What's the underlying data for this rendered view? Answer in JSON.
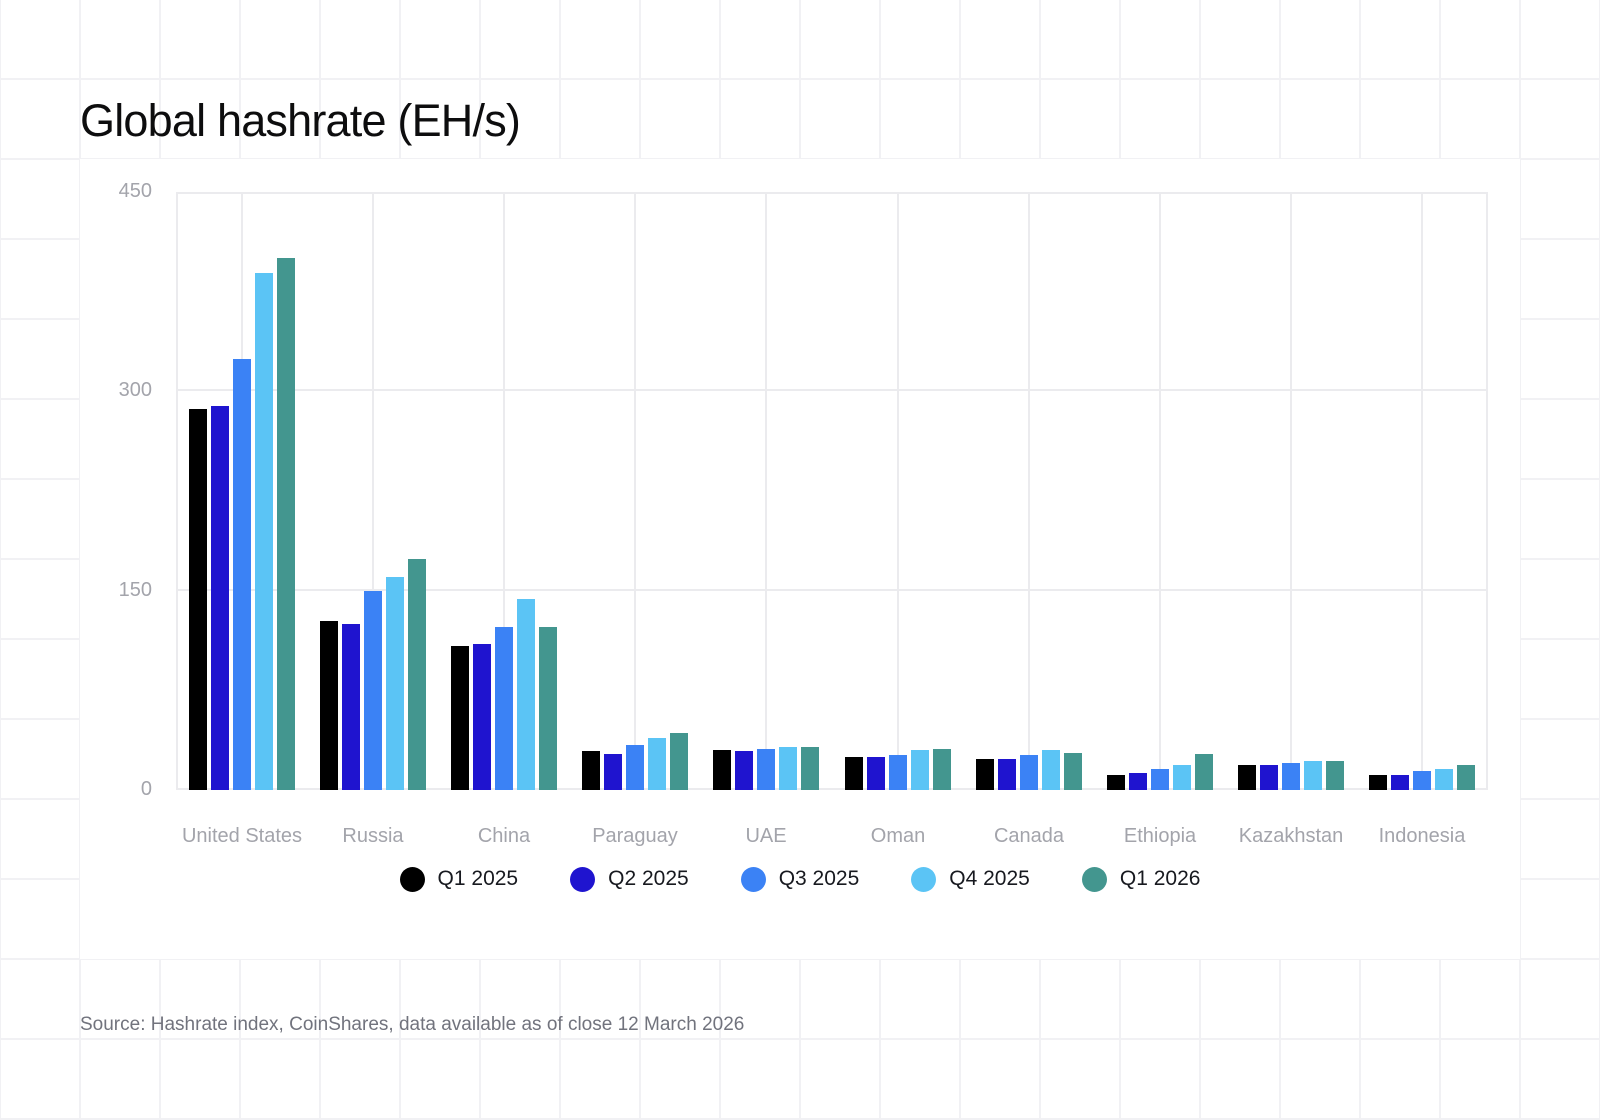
{
  "title": "Global hashrate (EH/s)",
  "source": "Source: Hashrate index, CoinShares, data available as of close 12 March 2026",
  "chart_data": {
    "type": "bar",
    "title": "Global hashrate (EH/s)",
    "xlabel": "",
    "ylabel": "",
    "ylim": [
      0,
      450
    ],
    "yticks": [
      0,
      150,
      300,
      450
    ],
    "grid": true,
    "legend_position": "bottom",
    "categories": [
      "United States",
      "Russia",
      "China",
      "Paraguay",
      "UAE",
      "Oman",
      "Canada",
      "Ethiopia",
      "Kazakhstan",
      "Indonesia"
    ],
    "series": [
      {
        "name": "Q1 2025",
        "color": "#000000",
        "values": [
          287,
          127,
          108,
          29,
          30,
          25,
          23,
          11,
          19,
          11
        ]
      },
      {
        "name": "Q2 2025",
        "color": "#1f14cf",
        "values": [
          289,
          125,
          110,
          27,
          29,
          25,
          23,
          13,
          19,
          11
        ]
      },
      {
        "name": "Q3 2025",
        "color": "#3b82f5",
        "values": [
          324,
          150,
          123,
          34,
          31,
          26,
          26,
          16,
          20,
          14
        ]
      },
      {
        "name": "Q4 2025",
        "color": "#5bc4f5",
        "values": [
          389,
          160,
          144,
          39,
          32,
          30,
          30,
          19,
          22,
          16
        ]
      },
      {
        "name": "Q1 2026",
        "color": "#43968f",
        "values": [
          400,
          174,
          123,
          43,
          32,
          31,
          28,
          27,
          22,
          19
        ]
      }
    ]
  }
}
